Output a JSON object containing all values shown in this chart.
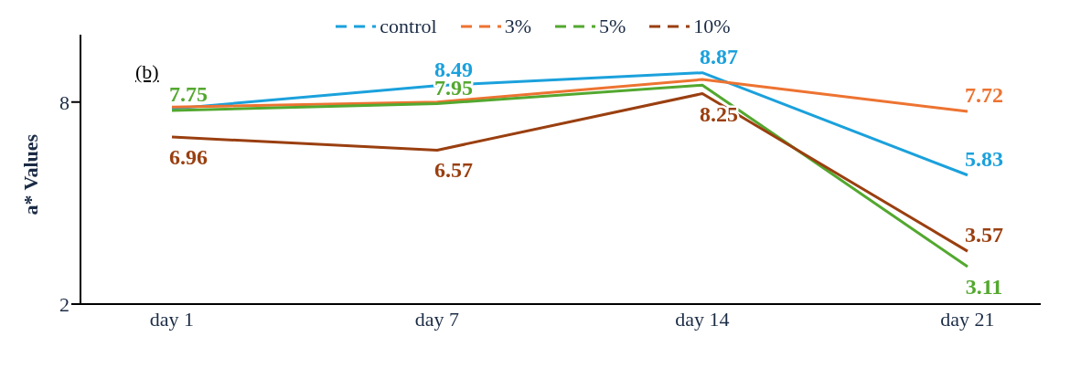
{
  "chart_data": {
    "type": "line",
    "categories": [
      "day 1",
      "day 7",
      "day 14",
      "day 21"
    ],
    "ylabel": "a* Values",
    "ylim": [
      2,
      10
    ],
    "yticks": [
      2,
      8
    ],
    "grid": false,
    "legend": "top",
    "marker": "none",
    "line_style": "solid",
    "annotations": [
      "(b)"
    ],
    "series": [
      {
        "name": "control",
        "color": "#1ba1dc",
        "values": [
          7.8,
          8.49,
          8.87,
          5.83
        ],
        "value_labels": [
          null,
          "8.49",
          "8.87",
          "5.83"
        ]
      },
      {
        "name": "3%",
        "color": "#ed7331",
        "values": [
          7.85,
          8.0,
          8.67,
          7.72
        ],
        "value_labels": [
          null,
          null,
          null,
          "7.72"
        ]
      },
      {
        "name": "5%",
        "color": "#53a82f",
        "values": [
          7.75,
          7.95,
          8.5,
          3.11
        ],
        "value_labels": [
          "7.75",
          "7.95",
          null,
          "3.11"
        ]
      },
      {
        "name": "10%",
        "color": "#9a3f10",
        "values": [
          6.96,
          6.57,
          8.25,
          3.57
        ],
        "value_labels": [
          "6.96",
          "6.57",
          "8.25",
          "3.57"
        ]
      }
    ]
  }
}
